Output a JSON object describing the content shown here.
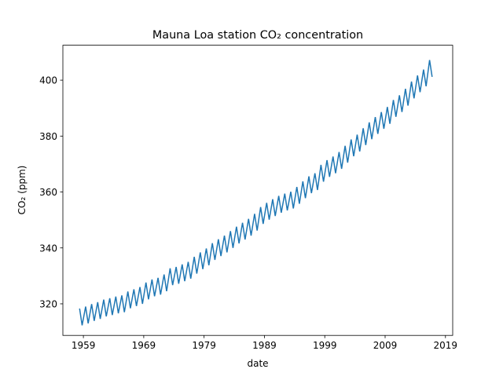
{
  "chart_data": {
    "type": "line",
    "title": "Mauna Loa station CO₂ concentration",
    "xlabel": "date",
    "ylabel": "CO₂ (ppm)",
    "x": [
      1958.37,
      1958.79,
      1959.37,
      1959.79,
      1960.37,
      1960.79,
      1961.37,
      1961.79,
      1962.37,
      1962.79,
      1963.37,
      1963.79,
      1964.37,
      1964.79,
      1965.37,
      1965.79,
      1966.37,
      1966.79,
      1967.37,
      1967.79,
      1968.37,
      1968.79,
      1969.37,
      1969.79,
      1970.37,
      1970.79,
      1971.37,
      1971.79,
      1972.37,
      1972.79,
      1973.37,
      1973.79,
      1974.37,
      1974.79,
      1975.37,
      1975.79,
      1976.37,
      1976.79,
      1977.37,
      1977.79,
      1978.37,
      1978.79,
      1979.37,
      1979.79,
      1980.37,
      1980.79,
      1981.37,
      1981.79,
      1982.37,
      1982.79,
      1983.37,
      1983.79,
      1984.37,
      1984.79,
      1985.37,
      1985.79,
      1986.37,
      1986.79,
      1987.37,
      1987.79,
      1988.37,
      1988.79,
      1989.37,
      1989.79,
      1990.37,
      1990.79,
      1991.37,
      1991.79,
      1992.37,
      1992.79,
      1993.37,
      1993.79,
      1994.37,
      1994.79,
      1995.37,
      1995.79,
      1996.37,
      1996.79,
      1997.37,
      1997.79,
      1998.37,
      1998.79,
      1999.37,
      1999.79,
      2000.37,
      2000.79,
      2001.37,
      2001.79,
      2002.37,
      2002.79,
      2003.37,
      2003.79,
      2004.37,
      2004.79,
      2005.37,
      2005.79,
      2006.37,
      2006.79,
      2007.37,
      2007.79,
      2008.37,
      2008.79,
      2009.37,
      2009.79,
      2010.37,
      2010.79,
      2011.37,
      2011.79,
      2012.37,
      2012.79,
      2013.37,
      2013.79,
      2014.37,
      2014.79,
      2015.37,
      2015.79,
      2016.37,
      2016.79
    ],
    "series": [
      {
        "name": "CO2",
        "color": "#1f77b4",
        "values": [
          318.3,
          312.3,
          319.0,
          313.0,
          319.9,
          313.9,
          320.6,
          314.6,
          321.5,
          315.5,
          322.0,
          316.0,
          322.6,
          316.6,
          323.0,
          317.0,
          324.4,
          318.4,
          325.2,
          319.2,
          326.0,
          320.0,
          327.6,
          321.6,
          328.7,
          322.7,
          329.3,
          323.3,
          330.5,
          324.5,
          332.7,
          326.7,
          333.2,
          327.2,
          334.1,
          328.1,
          335.0,
          329.0,
          336.8,
          330.8,
          338.4,
          332.4,
          339.8,
          333.8,
          341.7,
          335.7,
          343.1,
          337.1,
          344.4,
          338.4,
          346.0,
          340.0,
          347.6,
          341.6,
          349.0,
          343.0,
          350.4,
          344.4,
          352.2,
          346.2,
          354.6,
          348.6,
          356.1,
          350.1,
          357.4,
          351.4,
          358.6,
          352.6,
          359.4,
          353.4,
          360.1,
          354.1,
          361.8,
          355.8,
          363.8,
          357.8,
          365.6,
          359.6,
          366.7,
          360.7,
          369.7,
          363.7,
          371.4,
          365.4,
          372.7,
          366.7,
          374.3,
          368.3,
          376.5,
          370.5,
          378.8,
          372.8,
          380.5,
          374.5,
          382.8,
          376.8,
          384.9,
          378.9,
          386.8,
          380.8,
          388.6,
          382.6,
          390.4,
          384.4,
          392.9,
          386.9,
          394.6,
          388.6,
          396.9,
          390.9,
          399.5,
          393.5,
          401.7,
          395.7,
          403.8,
          397.8,
          407.2,
          401.2
        ]
      }
    ],
    "xlim": [
      1955.6,
      2020.2
    ],
    "ylim": [
      308.7,
      412.5
    ],
    "xticks": [
      1959,
      1969,
      1979,
      1989,
      1999,
      2009,
      2019
    ],
    "yticks": [
      320,
      340,
      360,
      380,
      400
    ]
  }
}
